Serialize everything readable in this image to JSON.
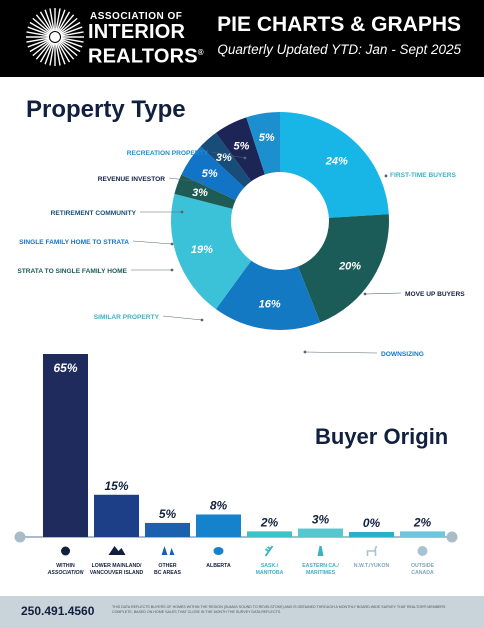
{
  "header": {
    "logo_line1": "ASSOCIATION OF",
    "logo_line2": "INTERIOR",
    "logo_line3": "REALTORS",
    "logo_mark": "®",
    "title": "PIE CHARTS & GRAPHS",
    "subtitle": "Quarterly Updated YTD: Jan - Sept 2025",
    "bg_color": "#000000"
  },
  "chart_data": [
    {
      "type": "pie",
      "title": "Property Type",
      "donut": true,
      "slices": [
        {
          "label": "FIRST-TIME BUYERS",
          "value": 24,
          "display": "24%",
          "color": "#18b6e6"
        },
        {
          "label": "MOVE UP BUYERS",
          "value": 20,
          "display": "20%",
          "color": "#1b5c59"
        },
        {
          "label": "DOWNSIZING",
          "value": 16,
          "display": "16%",
          "color": "#1479c3"
        },
        {
          "label": "SIMILAR PROPERTY",
          "value": 19,
          "display": "19%",
          "color": "#3cc2d8"
        },
        {
          "label": "STRATA TO SINGLE FAMILY HOME",
          "value": 3,
          "display": "3%",
          "color": "#1d5b54"
        },
        {
          "label": "SINGLE FAMILY HOME TO STRATA",
          "value": 5,
          "display": "5%",
          "color": "#1274c6"
        },
        {
          "label": "RETIREMENT COMMUNITY",
          "value": 3,
          "display": "3%",
          "color": "#174d78"
        },
        {
          "label": "REVENUE INVESTOR",
          "value": 5,
          "display": "5%",
          "color": "#1d2556"
        },
        {
          "label": "RECREATION PROPERTY",
          "value": 5,
          "display": "5%",
          "color": "#1c8fcf"
        }
      ]
    },
    {
      "type": "bar",
      "title": "Buyer Origin",
      "categories": [
        [
          "WITHIN",
          "ASSOCIATION"
        ],
        [
          "LOWER MAINLAND/",
          "VANCOUVER ISLAND"
        ],
        [
          "OTHER",
          "BC AREAS"
        ],
        [
          "ALBERTA"
        ],
        [
          "SASK./",
          "MANITOBA"
        ],
        [
          "EASTERN CA./",
          "MARITIMES"
        ],
        [
          "N.W.T./YUKON"
        ],
        [
          "OUTSIDE",
          "CANADA"
        ]
      ],
      "values": [
        65,
        15,
        5,
        8,
        2,
        3,
        0,
        2
      ],
      "value_labels": [
        "65%",
        "15%",
        "5%",
        "8%",
        "2%",
        "3%",
        "0%",
        "2%"
      ],
      "colors": [
        "#1f2b5c",
        "#1d3f87",
        "#1c61ad",
        "#1682cc",
        "#3cc2c8",
        "#56c7cf",
        "#29b0c9",
        "#6cc6df"
      ],
      "label_colors": [
        "#12203f",
        "#12203f",
        "#12203f",
        "#12203f",
        "#3cb2c0",
        "#3cb2c0",
        "#7fa6b9",
        "#7fa6b9"
      ],
      "icons": [
        "gear-icon",
        "mountain-icon",
        "trees-icon",
        "bull-icon",
        "wheat-icon",
        "lighthouse-icon",
        "caribou-icon",
        "globe-icon"
      ],
      "ylim": [
        0,
        70
      ]
    }
  ],
  "footer": {
    "phone": "250.491.4560",
    "disclaimer": "This data reflects buyers of homes within the region (Sumas Sound to Revelstoke) and is obtained through a monthly board-wide survey that REALTOR® members complete, based on home sales that close in the month the survey data reflects.",
    "bg_color": "#c9d3da"
  }
}
